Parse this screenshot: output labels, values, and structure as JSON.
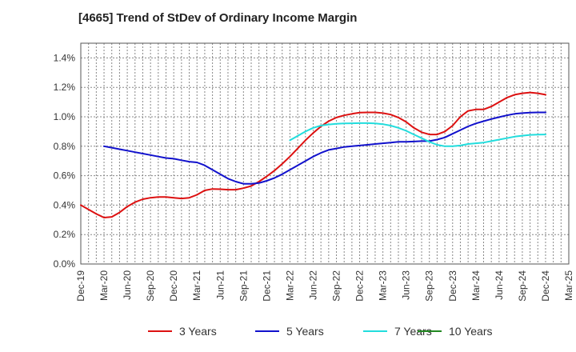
{
  "chart_data": {
    "type": "line",
    "title": "[4665]  Trend of StDev of Ordinary Income Margin",
    "xlabel": "",
    "ylabel": "",
    "x_ticks": [
      "Dec-19",
      "Mar-20",
      "Jun-20",
      "Sep-20",
      "Dec-20",
      "Mar-21",
      "Jun-21",
      "Sep-21",
      "Dec-21",
      "Mar-22",
      "Jun-22",
      "Sep-22",
      "Dec-22",
      "Mar-23",
      "Jun-23",
      "Sep-23",
      "Dec-23",
      "Mar-24",
      "Jun-24",
      "Sep-24",
      "Dec-24",
      "Mar-25"
    ],
    "y_ticks": [
      "0.0%",
      "0.2%",
      "0.4%",
      "0.6%",
      "0.8%",
      "1.0%",
      "1.2%",
      "1.4%"
    ],
    "ylim": [
      0,
      1.5
    ],
    "grid": true,
    "legend_position": "bottom",
    "series": [
      {
        "name": "3 Years",
        "color": "#dd1111",
        "x": [
          "2019-12",
          "2020-01",
          "2020-02",
          "2020-03",
          "2020-04",
          "2020-05",
          "2020-06",
          "2020-07",
          "2020-08",
          "2020-09",
          "2020-10",
          "2020-11",
          "2020-12",
          "2021-01",
          "2021-02",
          "2021-03",
          "2021-04",
          "2021-05",
          "2021-06",
          "2021-07",
          "2021-08",
          "2021-09",
          "2021-10",
          "2021-11",
          "2021-12",
          "2022-01",
          "2022-02",
          "2022-03",
          "2022-04",
          "2022-05",
          "2022-06",
          "2022-07",
          "2022-08",
          "2022-09",
          "2022-10",
          "2022-11",
          "2022-12",
          "2023-01",
          "2023-02",
          "2023-03",
          "2023-04",
          "2023-05",
          "2023-06",
          "2023-07",
          "2023-08",
          "2023-09",
          "2023-10",
          "2023-11",
          "2023-12",
          "2024-01",
          "2024-02",
          "2024-03",
          "2024-04",
          "2024-05",
          "2024-06",
          "2024-07",
          "2024-08",
          "2024-09",
          "2024-10",
          "2024-11",
          "2024-12"
        ],
        "values": [
          0.4,
          0.37,
          0.34,
          0.315,
          0.32,
          0.35,
          0.39,
          0.42,
          0.44,
          0.45,
          0.455,
          0.455,
          0.45,
          0.445,
          0.45,
          0.47,
          0.5,
          0.51,
          0.508,
          0.505,
          0.505,
          0.515,
          0.53,
          0.56,
          0.595,
          0.635,
          0.68,
          0.73,
          0.785,
          0.84,
          0.89,
          0.935,
          0.97,
          0.995,
          1.01,
          1.02,
          1.028,
          1.03,
          1.03,
          1.025,
          1.015,
          0.995,
          0.965,
          0.925,
          0.895,
          0.88,
          0.88,
          0.9,
          0.94,
          1.0,
          1.04,
          1.05,
          1.05,
          1.07,
          1.1,
          1.13,
          1.15,
          1.16,
          1.165,
          1.16,
          1.15
        ]
      },
      {
        "name": "5 Years",
        "color": "#1111cc",
        "x": [
          "2020-03",
          "2020-04",
          "2020-05",
          "2020-06",
          "2020-07",
          "2020-08",
          "2020-09",
          "2020-10",
          "2020-11",
          "2020-12",
          "2021-01",
          "2021-02",
          "2021-03",
          "2021-04",
          "2021-05",
          "2021-06",
          "2021-07",
          "2021-08",
          "2021-09",
          "2021-10",
          "2021-11",
          "2021-12",
          "2022-01",
          "2022-02",
          "2022-03",
          "2022-04",
          "2022-05",
          "2022-06",
          "2022-07",
          "2022-08",
          "2022-09",
          "2022-10",
          "2022-11",
          "2022-12",
          "2023-01",
          "2023-02",
          "2023-03",
          "2023-04",
          "2023-05",
          "2023-06",
          "2023-07",
          "2023-08",
          "2023-09",
          "2023-10",
          "2023-11",
          "2023-12",
          "2024-01",
          "2024-02",
          "2024-03",
          "2024-04",
          "2024-05",
          "2024-06",
          "2024-07",
          "2024-08",
          "2024-09",
          "2024-10",
          "2024-11",
          "2024-12"
        ],
        "values": [
          0.8,
          0.79,
          0.78,
          0.77,
          0.76,
          0.75,
          0.74,
          0.73,
          0.72,
          0.715,
          0.705,
          0.695,
          0.69,
          0.67,
          0.64,
          0.61,
          0.58,
          0.56,
          0.545,
          0.545,
          0.55,
          0.565,
          0.585,
          0.61,
          0.64,
          0.67,
          0.7,
          0.73,
          0.755,
          0.775,
          0.785,
          0.795,
          0.8,
          0.805,
          0.81,
          0.815,
          0.82,
          0.825,
          0.83,
          0.83,
          0.832,
          0.835,
          0.835,
          0.845,
          0.86,
          0.885,
          0.91,
          0.935,
          0.955,
          0.97,
          0.985,
          0.998,
          1.01,
          1.02,
          1.025,
          1.028,
          1.03,
          1.03
        ]
      },
      {
        "name": "7 Years",
        "color": "#22dddd",
        "x": [
          "2022-03",
          "2022-04",
          "2022-05",
          "2022-06",
          "2022-07",
          "2022-08",
          "2022-09",
          "2022-10",
          "2022-11",
          "2022-12",
          "2023-01",
          "2023-02",
          "2023-03",
          "2023-04",
          "2023-05",
          "2023-06",
          "2023-07",
          "2023-08",
          "2023-09",
          "2023-10",
          "2023-11",
          "2023-12",
          "2024-01",
          "2024-02",
          "2024-03",
          "2024-04",
          "2024-05",
          "2024-06",
          "2024-07",
          "2024-08",
          "2024-09",
          "2024-10",
          "2024-11",
          "2024-12"
        ],
        "values": [
          0.84,
          0.87,
          0.9,
          0.925,
          0.94,
          0.948,
          0.952,
          0.955,
          0.956,
          0.957,
          0.957,
          0.955,
          0.95,
          0.94,
          0.925,
          0.905,
          0.88,
          0.855,
          0.83,
          0.81,
          0.8,
          0.8,
          0.805,
          0.815,
          0.82,
          0.825,
          0.835,
          0.845,
          0.855,
          0.865,
          0.872,
          0.877,
          0.879,
          0.88
        ]
      },
      {
        "name": "10 Years",
        "color": "#228822",
        "x": [],
        "values": []
      }
    ]
  }
}
